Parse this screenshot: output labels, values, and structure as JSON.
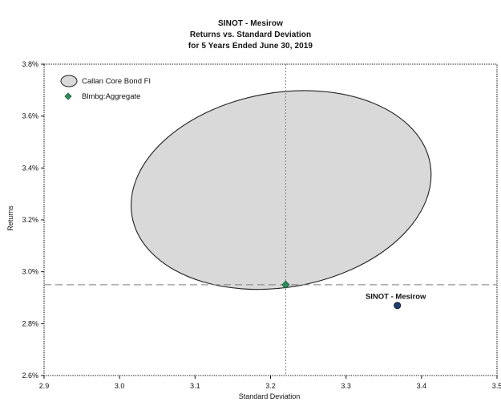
{
  "chart_data": {
    "type": "scatter",
    "title": "SINOT - Mesirow",
    "subtitle_line1": "Returns vs. Standard Deviation",
    "subtitle_line2": "for 5 Years Ended June 30, 2019",
    "xlabel": "Standard Deviation",
    "ylabel": "Returns",
    "xlim": [
      2.9,
      3.5
    ],
    "ylim": [
      2.6,
      3.8
    ],
    "x_ticks": [
      2.9,
      3.0,
      3.1,
      3.2,
      3.3,
      3.4,
      3.5
    ],
    "x_tick_labels": [
      "2.9",
      "3.0",
      "3.1",
      "3.2",
      "3.3",
      "3.4",
      "3.5"
    ],
    "y_ticks": [
      2.6,
      2.8,
      3.0,
      3.2,
      3.4,
      3.6,
      3.8
    ],
    "y_tick_labels": [
      "2.6%",
      "2.8%",
      "3.0%",
      "3.2%",
      "3.4%",
      "3.6%",
      "3.8%"
    ],
    "legend_position": "top-left",
    "grid": false,
    "reference_lines": {
      "x": 3.22,
      "y": 2.95
    },
    "region": {
      "name": "Callan Core Bond FI",
      "shape": "ellipse",
      "center": [
        3.214,
        3.315
      ],
      "rx": 0.2005,
      "ry": 0.375,
      "fill_color": "#d9d9d9",
      "stroke_color": "#222222"
    },
    "series": [
      {
        "name": "Blmbg:Aggregate",
        "marker": "diamond",
        "color": "#2e8b57",
        "points": [
          {
            "x": 3.22,
            "y": 2.95
          }
        ]
      },
      {
        "name": "SINOT - Mesirow",
        "marker": "circle",
        "color": "#1f3f70",
        "points": [
          {
            "x": 3.368,
            "y": 2.87
          }
        ]
      }
    ],
    "annotations": [
      {
        "text": "SINOT - Mesirow",
        "anchor_series": "SINOT - Mesirow"
      }
    ]
  }
}
